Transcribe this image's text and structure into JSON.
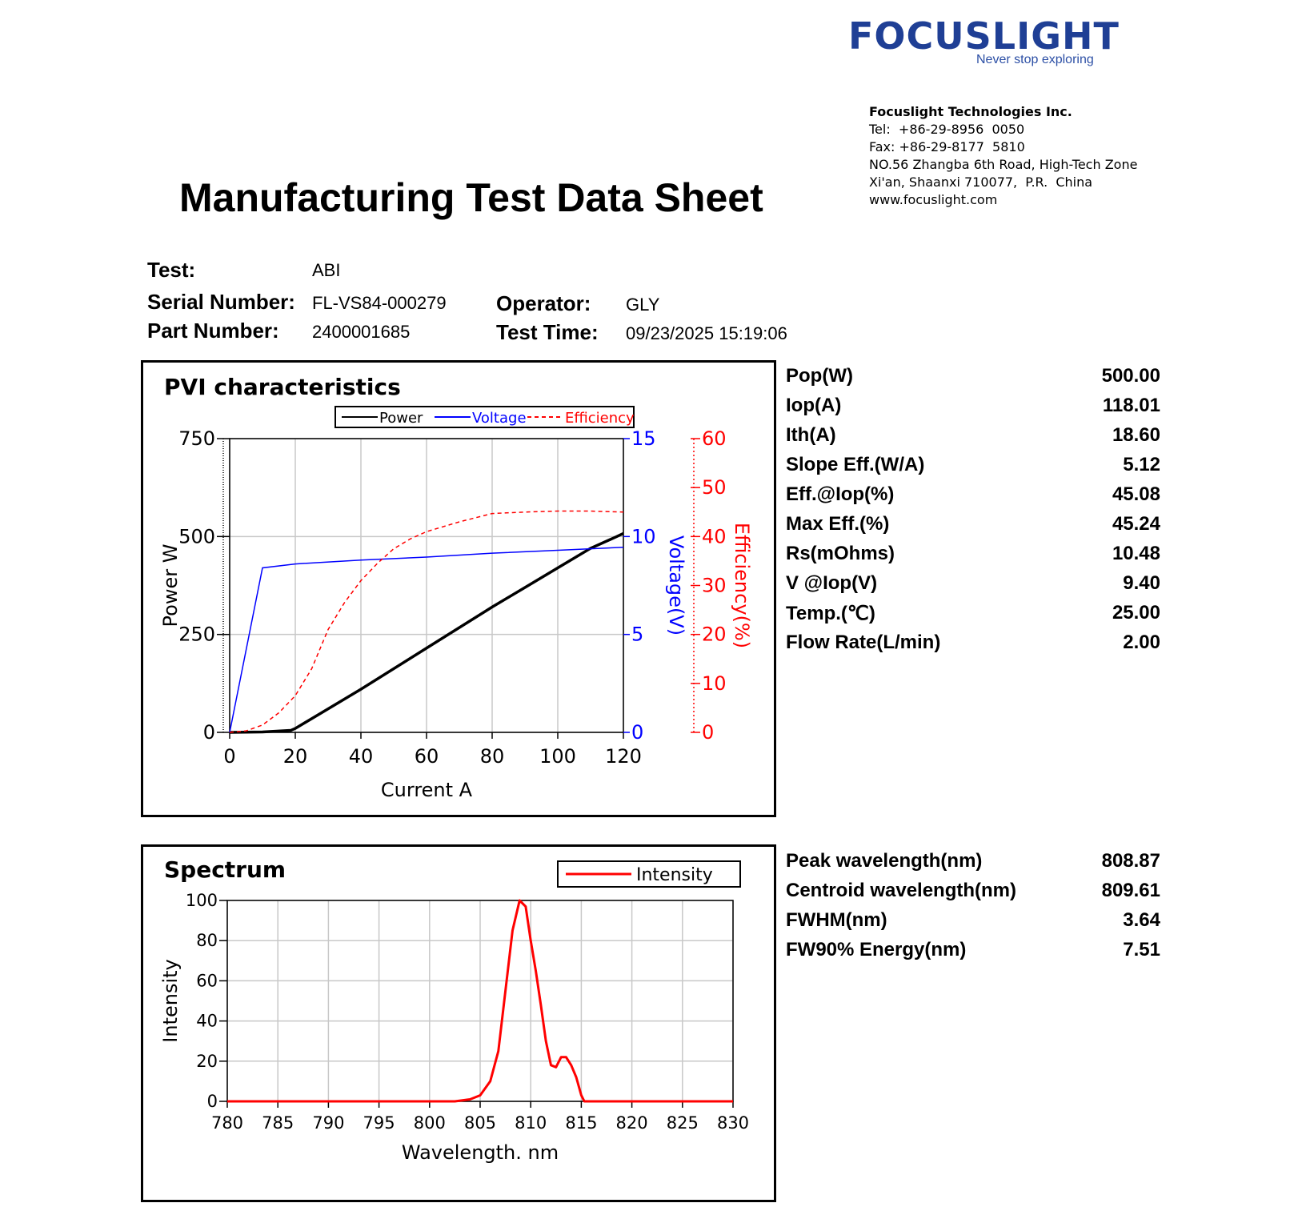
{
  "header": {
    "logo": "FOCUSLIGHT",
    "slogan": "Never stop exploring",
    "company": "Focuslight Technologies Inc.",
    "tel": "Tel:  +86-29-8956  0050",
    "fax": "Fax: +86-29-8177  5810",
    "address1": "NO.56 Zhangba 6th Road, High-Tech Zone",
    "address2": "Xi'an, Shaanxi 710077,  P.R.  China",
    "website": "www.focuslight.com"
  },
  "title": "Manufacturing Test Data Sheet",
  "info": {
    "test_label": "Test:",
    "test_value": "ABI",
    "serial_label": "Serial Number:",
    "serial_value": "FL-VS84-000279",
    "part_label": "Part Number:",
    "part_value": "2400001685",
    "operator_label": "Operator:",
    "operator_value": "GLY",
    "time_label": "Test Time:",
    "time_value": "09/23/2025 15:19:06"
  },
  "pvi_params": [
    {
      "label": "Pop(W)",
      "value": "500.00"
    },
    {
      "label": "Iop(A)",
      "value": "118.01"
    },
    {
      "label": "Ith(A)",
      "value": "18.60"
    },
    {
      "label": "Slope Eff.(W/A)",
      "value": "5.12"
    },
    {
      "label": "Eff.@Iop(%)",
      "value": "45.08"
    },
    {
      "label": "Max Eff.(%)",
      "value": "45.24"
    },
    {
      "label": "Rs(mOhms)",
      "value": "10.48"
    },
    {
      "label": "V @Iop(V)",
      "value": "9.40"
    },
    {
      "label": "Temp.(℃)",
      "value": "25.00"
    },
    {
      "label": "Flow Rate(L/min)",
      "value": "2.00"
    }
  ],
  "spectrum_params": [
    {
      "label": "Peak wavelength(nm)",
      "value": "808.87"
    },
    {
      "label": "Centroid wavelength(nm)",
      "value": "809.61"
    },
    {
      "label": "FWHM(nm)",
      "value": "3.64"
    },
    {
      "label": "FW90% Energy(nm)",
      "value": "7.51"
    }
  ],
  "chart_data": [
    {
      "type": "line",
      "title": "PVI characteristics",
      "xlabel": "Current A",
      "xlim": [
        0,
        120
      ],
      "xticks": [
        0,
        20,
        40,
        60,
        80,
        100,
        120
      ],
      "grid": true,
      "legend_position": "top",
      "axes": {
        "power": {
          "label": "Power W",
          "lim": [
            0,
            750
          ],
          "ticks": [
            0,
            250,
            500,
            750
          ],
          "color": "#000000"
        },
        "voltage": {
          "label": "Voltage(V)",
          "lim": [
            0,
            15
          ],
          "ticks": [
            0,
            5,
            10,
            15
          ],
          "color": "#0000ff"
        },
        "efficiency": {
          "label": "Efficiency(%)",
          "lim": [
            0,
            60
          ],
          "ticks": [
            0,
            10,
            20,
            30,
            40,
            50,
            60
          ],
          "color": "#ff0000"
        }
      },
      "series": [
        {
          "name": "Power",
          "axis": "power",
          "color": "#000000",
          "dash": false,
          "x": [
            0,
            10,
            18.6,
            20,
            40,
            60,
            80,
            90,
            100,
            110,
            118,
            120
          ],
          "y": [
            0,
            1,
            5,
            10,
            110,
            215,
            320,
            370,
            420,
            470,
            500,
            508
          ]
        },
        {
          "name": "Voltage",
          "axis": "voltage",
          "color": "#0000ff",
          "dash": false,
          "x": [
            0,
            10,
            20,
            40,
            60,
            80,
            100,
            120
          ],
          "y": [
            0,
            8.4,
            8.6,
            8.8,
            8.95,
            9.15,
            9.3,
            9.45
          ]
        },
        {
          "name": "Efficiency",
          "axis": "efficiency",
          "color": "#ff0000",
          "dash": true,
          "x": [
            0,
            5,
            10,
            15,
            20,
            25,
            30,
            35,
            40,
            45,
            50,
            55,
            60,
            70,
            80,
            90,
            100,
            110,
            120
          ],
          "y": [
            0,
            0.3,
            1.5,
            4,
            7.5,
            13,
            21,
            26.5,
            31,
            34.5,
            37.5,
            39.5,
            41,
            43,
            44.7,
            45,
            45.2,
            45.2,
            45
          ]
        }
      ]
    },
    {
      "type": "line",
      "title": "Spectrum",
      "xlabel": "Wavelength. nm",
      "ylabel": "Intensity",
      "xlim": [
        780,
        830
      ],
      "ylim": [
        0,
        100
      ],
      "xticks": [
        780,
        785,
        790,
        795,
        800,
        805,
        810,
        815,
        820,
        825,
        830
      ],
      "yticks": [
        0,
        20,
        40,
        60,
        80,
        100
      ],
      "grid": true,
      "legend_position": "top-right",
      "series": [
        {
          "name": "Intensity",
          "color": "#ff0000",
          "x": [
            780,
            802.5,
            804,
            805,
            806,
            806.8,
            807.5,
            808.2,
            808.9,
            809.5,
            810,
            810.5,
            811,
            811.5,
            812,
            812.5,
            813,
            813.5,
            814,
            814.5,
            815,
            815.3,
            830
          ],
          "y": [
            0,
            0,
            1,
            3,
            10,
            25,
            55,
            85,
            100,
            97,
            80,
            65,
            48,
            30,
            18,
            17,
            22,
            22,
            18,
            12,
            3,
            0,
            0
          ]
        }
      ]
    }
  ]
}
